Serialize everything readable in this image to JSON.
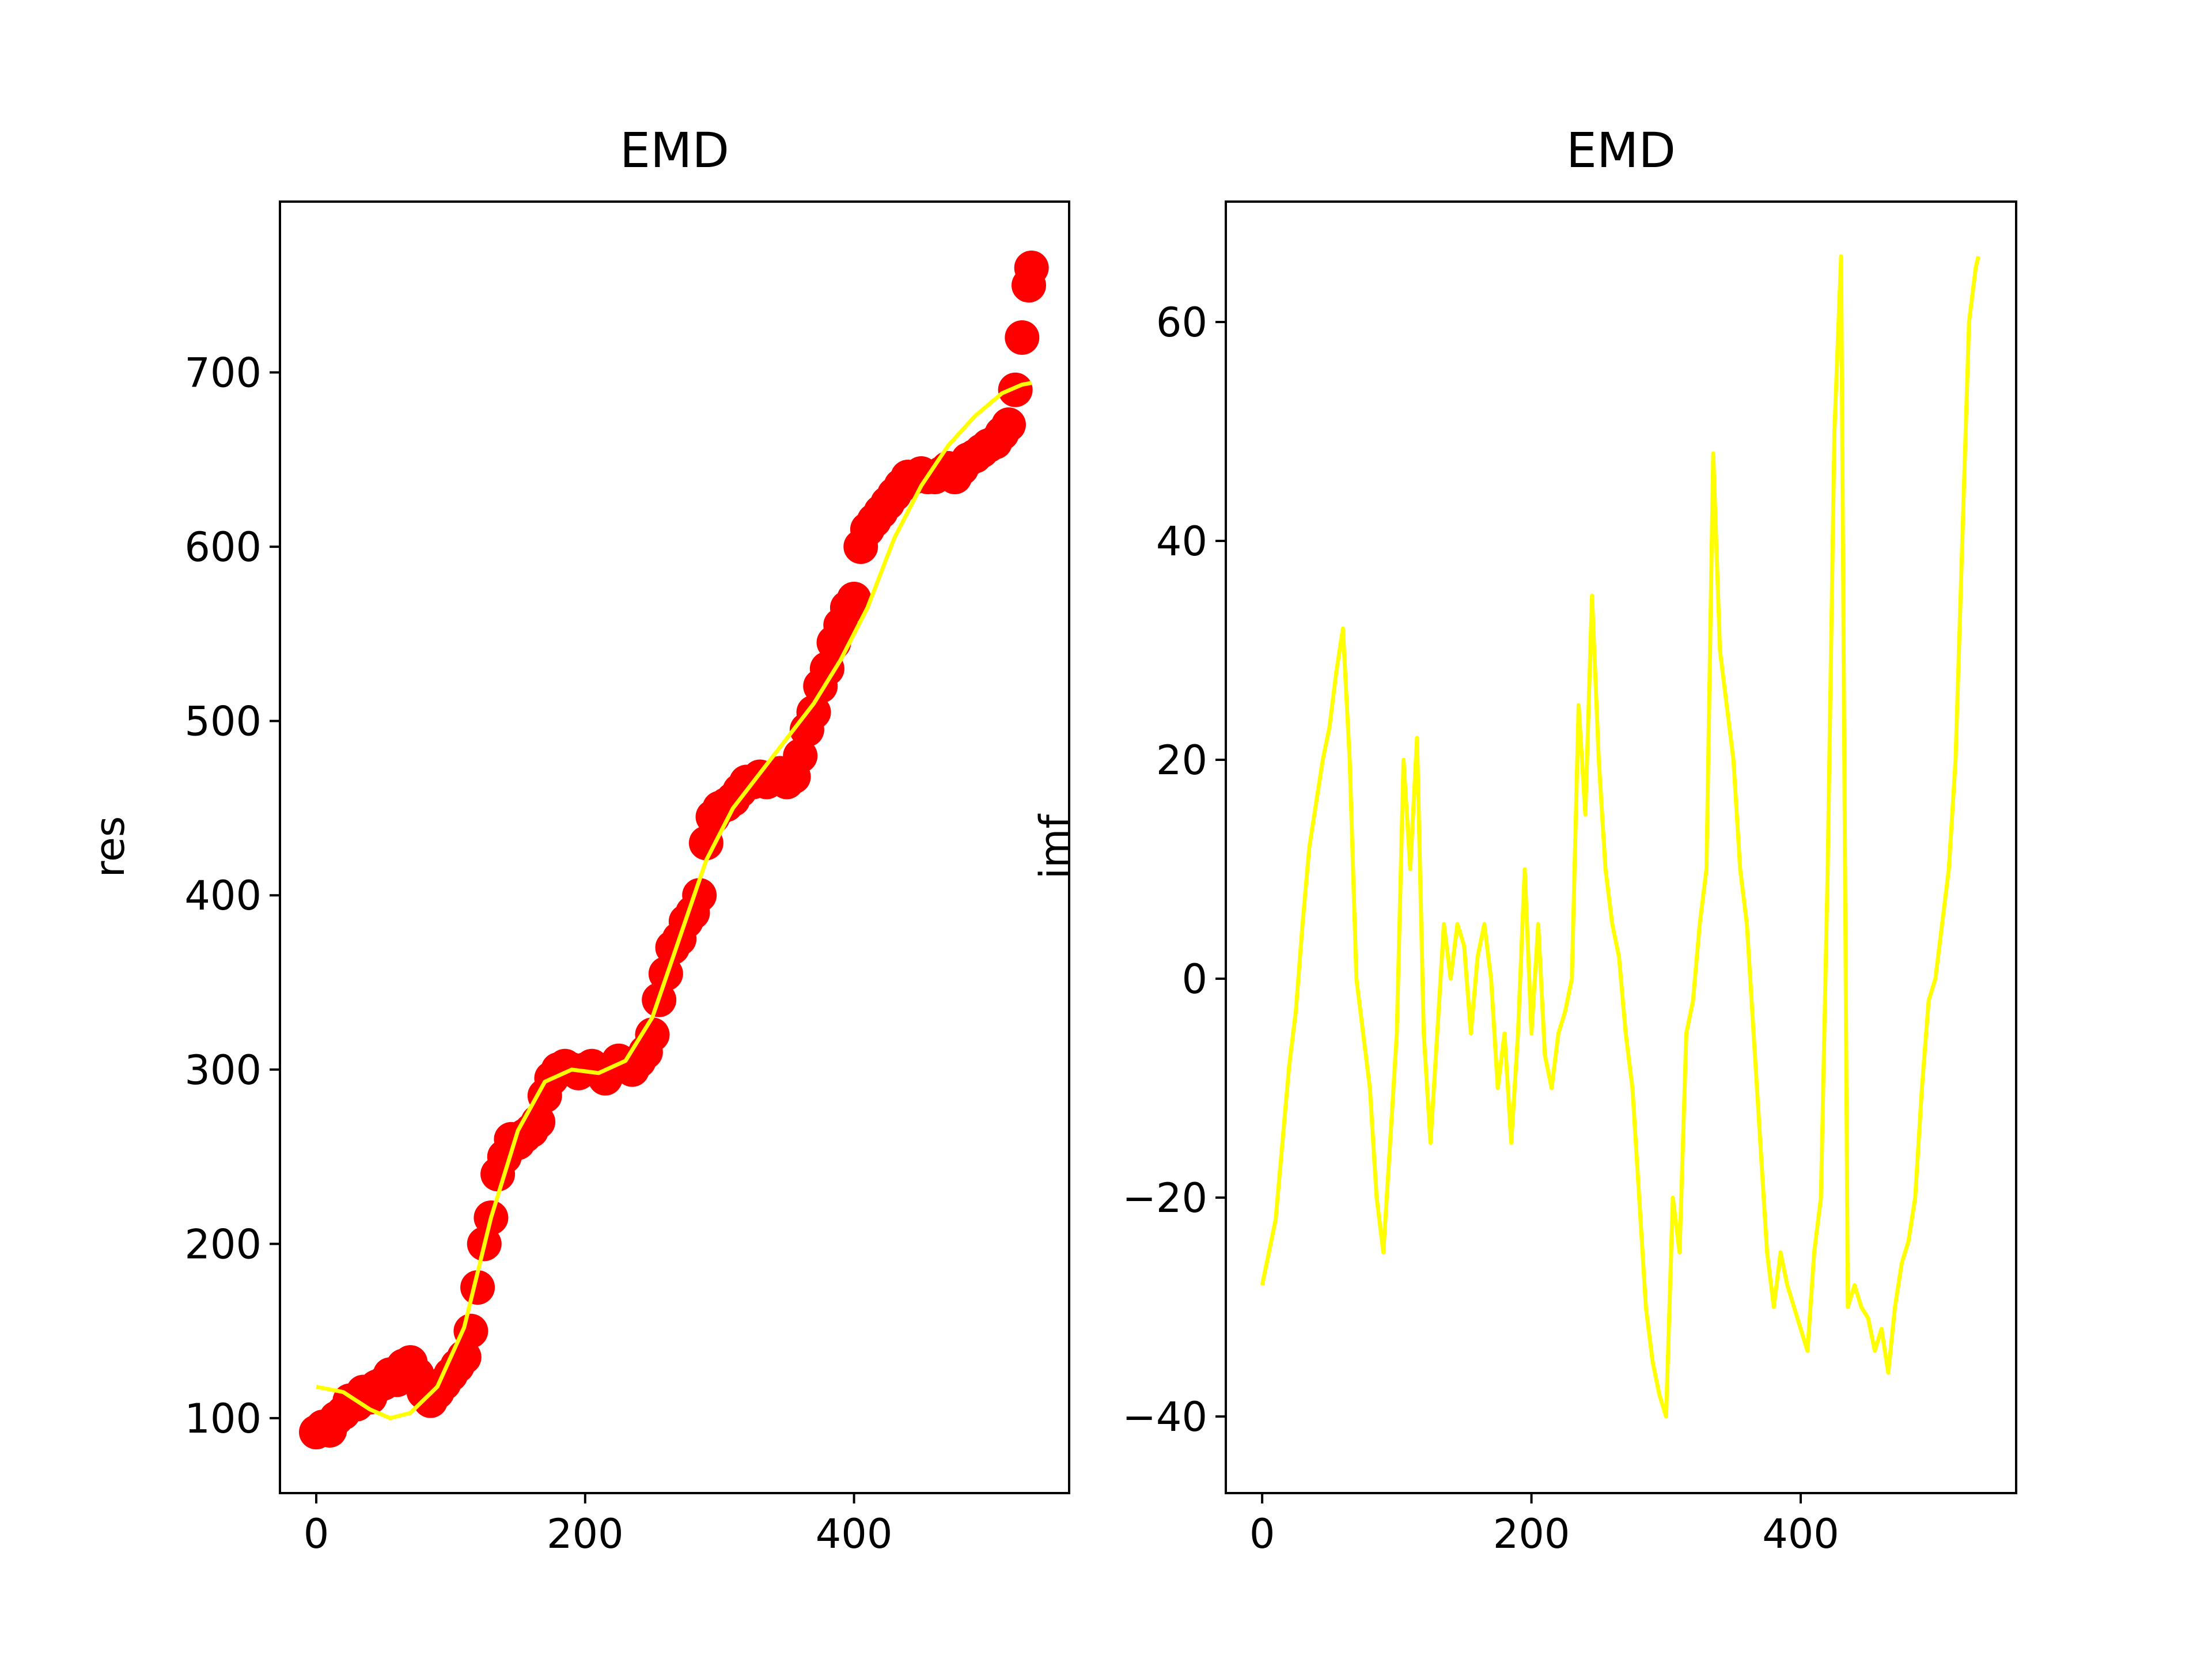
{
  "colors": {
    "scatter": "#ff0000",
    "line": "#ffff00",
    "axes": "#000000",
    "background": "#ffffff"
  },
  "chart_data": [
    {
      "type": "scatter",
      "title": "EMD",
      "xlabel": "",
      "ylabel": "res",
      "xlim": [
        -27,
        560
      ],
      "ylim": [
        57,
        798
      ],
      "xticks": [
        0,
        200,
        400
      ],
      "yticks": [
        100,
        200,
        300,
        400,
        500,
        600,
        700
      ],
      "grid": false,
      "scatter_series": {
        "color": "#ff0000",
        "x": [
          0,
          5,
          10,
          15,
          20,
          25,
          30,
          35,
          40,
          45,
          50,
          55,
          60,
          65,
          70,
          75,
          80,
          85,
          90,
          95,
          100,
          105,
          110,
          115,
          120,
          125,
          130,
          135,
          140,
          145,
          150,
          155,
          160,
          165,
          170,
          175,
          180,
          185,
          190,
          195,
          200,
          205,
          210,
          215,
          220,
          225,
          230,
          235,
          240,
          245,
          250,
          255,
          260,
          265,
          270,
          275,
          280,
          285,
          290,
          295,
          300,
          305,
          310,
          315,
          320,
          325,
          330,
          335,
          340,
          345,
          350,
          355,
          360,
          365,
          370,
          375,
          380,
          385,
          390,
          395,
          400,
          405,
          410,
          415,
          420,
          425,
          430,
          435,
          440,
          445,
          450,
          455,
          460,
          465,
          470,
          475,
          480,
          485,
          490,
          495,
          500,
          505,
          510,
          515,
          520,
          525,
          530,
          532
        ],
        "y": [
          92,
          95,
          93,
          100,
          103,
          110,
          108,
          115,
          112,
          118,
          120,
          125,
          122,
          130,
          132,
          125,
          115,
          110,
          115,
          120,
          125,
          130,
          135,
          150,
          175,
          200,
          215,
          240,
          250,
          260,
          258,
          262,
          265,
          270,
          285,
          295,
          300,
          302,
          300,
          298,
          300,
          302,
          300,
          295,
          300,
          305,
          302,
          300,
          305,
          310,
          320,
          340,
          355,
          370,
          375,
          385,
          390,
          400,
          430,
          445,
          450,
          452,
          455,
          460,
          465,
          465,
          468,
          465,
          468,
          470,
          465,
          468,
          480,
          495,
          505,
          520,
          530,
          545,
          555,
          565,
          570,
          600,
          610,
          615,
          620,
          625,
          630,
          635,
          640,
          640,
          642,
          640,
          640,
          642,
          645,
          640,
          645,
          650,
          652,
          655,
          658,
          660,
          665,
          670,
          690,
          720,
          750,
          760
        ]
      },
      "line_series": {
        "color": "#ffff00",
        "x": [
          0,
          20,
          40,
          55,
          70,
          90,
          110,
          130,
          150,
          170,
          190,
          210,
          230,
          250,
          270,
          290,
          310,
          330,
          350,
          370,
          390,
          410,
          430,
          450,
          470,
          490,
          510,
          525,
          532
        ],
        "y": [
          118,
          115,
          105,
          100,
          103,
          118,
          152,
          215,
          265,
          293,
          300,
          298,
          305,
          330,
          375,
          420,
          450,
          470,
          490,
          510,
          535,
          565,
          605,
          635,
          658,
          675,
          688,
          693,
          694
        ]
      }
    },
    {
      "type": "line",
      "title": "EMD",
      "xlabel": "",
      "ylabel": "imf",
      "xlim": [
        -27,
        560
      ],
      "ylim": [
        -47,
        71
      ],
      "xticks": [
        0,
        200,
        400
      ],
      "yticks": [
        -40,
        -20,
        0,
        20,
        40,
        60
      ],
      "ytick_labels": [
        "−40",
        "−20",
        "0",
        "20",
        "40",
        "60"
      ],
      "grid": false,
      "series": [
        {
          "color": "#ffff00",
          "x": [
            0,
            5,
            10,
            15,
            20,
            25,
            30,
            35,
            40,
            45,
            50,
            55,
            60,
            65,
            70,
            75,
            80,
            85,
            90,
            95,
            100,
            105,
            110,
            115,
            120,
            125,
            130,
            135,
            140,
            145,
            150,
            155,
            160,
            165,
            170,
            175,
            180,
            185,
            190,
            195,
            200,
            205,
            210,
            215,
            220,
            225,
            230,
            235,
            240,
            245,
            250,
            255,
            260,
            265,
            270,
            275,
            280,
            285,
            290,
            295,
            300,
            305,
            310,
            315,
            320,
            325,
            330,
            335,
            340,
            345,
            350,
            355,
            360,
            365,
            370,
            375,
            380,
            385,
            390,
            395,
            400,
            405,
            410,
            415,
            420,
            425,
            430,
            435,
            440,
            445,
            450,
            455,
            460,
            465,
            470,
            475,
            480,
            485,
            490,
            495,
            500,
            505,
            510,
            515,
            520,
            525,
            530,
            532
          ],
          "y": [
            -28,
            -25,
            -22,
            -15,
            -8,
            -3,
            5,
            12,
            16,
            20,
            23,
            28,
            32,
            20,
            0,
            -5,
            -10,
            -20,
            -25,
            -15,
            -5,
            20,
            10,
            22,
            -5,
            -15,
            -5,
            5,
            0,
            5,
            3,
            -5,
            2,
            5,
            0,
            -10,
            -5,
            -15,
            -5,
            10,
            -5,
            5,
            -7,
            -10,
            -5,
            -3,
            0,
            25,
            15,
            35,
            20,
            10,
            5,
            2,
            -5,
            -10,
            -20,
            -30,
            -35,
            -38,
            -40,
            -20,
            -25,
            -5,
            -2,
            5,
            10,
            48,
            30,
            25,
            20,
            10,
            5,
            -5,
            -15,
            -25,
            -30,
            -25,
            -28,
            -30,
            -32,
            -34,
            -25,
            -20,
            10,
            50,
            66,
            -30,
            -28,
            -30,
            -31,
            -34,
            -32,
            -36,
            -30,
            -26,
            -24,
            -20,
            -10,
            -2,
            0,
            5,
            10,
            20,
            40,
            60,
            65,
            66
          ],
          "_note_ignore": null
        }
      ]
    }
  ]
}
